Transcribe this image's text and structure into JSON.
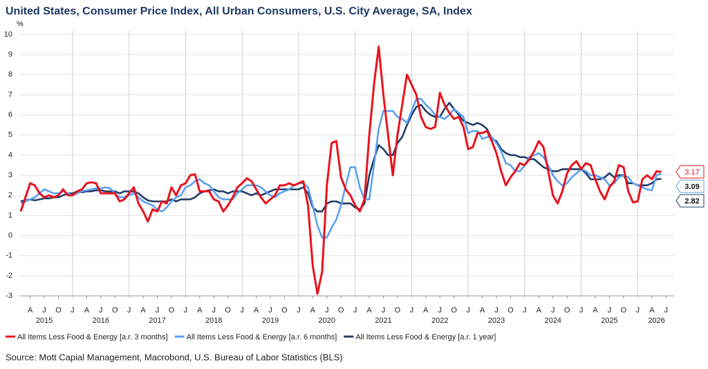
{
  "chart_data": {
    "type": "line",
    "title": "United States, Consumer Price Index, All Urban Consumers, U.S. City Average, SA, Index",
    "y_unit": "%",
    "source": "Source: Mott Capial Management, Macrobond, U.S. Bureau of Labor Statistics (BLS)",
    "ylim": [
      -3,
      10
    ],
    "yticks": [
      -3,
      -2,
      -1,
      0,
      1,
      2,
      3,
      4,
      5,
      6,
      7,
      8,
      9,
      10
    ],
    "grid": true,
    "xlim": [
      "2015-02",
      "2026-08"
    ],
    "x": [
      "2015-02",
      "2015-03",
      "2015-04",
      "2015-05",
      "2015-06",
      "2015-07",
      "2015-08",
      "2015-09",
      "2015-10",
      "2015-11",
      "2015-12",
      "2016-01",
      "2016-02",
      "2016-03",
      "2016-04",
      "2016-05",
      "2016-06",
      "2016-07",
      "2016-08",
      "2016-09",
      "2016-10",
      "2016-11",
      "2016-12",
      "2017-01",
      "2017-02",
      "2017-03",
      "2017-04",
      "2017-05",
      "2017-06",
      "2017-07",
      "2017-08",
      "2017-09",
      "2017-10",
      "2017-11",
      "2017-12",
      "2018-01",
      "2018-02",
      "2018-03",
      "2018-04",
      "2018-05",
      "2018-06",
      "2018-07",
      "2018-08",
      "2018-09",
      "2018-10",
      "2018-11",
      "2018-12",
      "2019-01",
      "2019-02",
      "2019-03",
      "2019-04",
      "2019-05",
      "2019-06",
      "2019-07",
      "2019-08",
      "2019-09",
      "2019-10",
      "2019-11",
      "2019-12",
      "2020-01",
      "2020-02",
      "2020-03",
      "2020-04",
      "2020-05",
      "2020-06",
      "2020-07",
      "2020-08",
      "2020-09",
      "2020-10",
      "2020-11",
      "2020-12",
      "2021-01",
      "2021-02",
      "2021-03",
      "2021-04",
      "2021-05",
      "2021-06",
      "2021-07",
      "2021-08",
      "2021-09",
      "2021-10",
      "2021-11",
      "2021-12",
      "2022-01",
      "2022-02",
      "2022-03",
      "2022-04",
      "2022-05",
      "2022-06",
      "2022-07",
      "2022-08",
      "2022-09",
      "2022-10",
      "2022-11",
      "2022-12",
      "2023-01",
      "2023-02",
      "2023-03",
      "2023-04",
      "2023-05",
      "2023-06",
      "2023-07",
      "2023-08",
      "2023-09",
      "2023-10",
      "2023-11",
      "2023-12",
      "2024-01",
      "2024-02",
      "2024-03",
      "2024-04",
      "2024-05",
      "2024-06",
      "2024-07",
      "2024-08",
      "2024-09",
      "2024-10",
      "2024-11",
      "2024-12",
      "2025-01",
      "2025-02",
      "2025-03",
      "2025-04",
      "2025-05",
      "2025-06",
      "2025-07",
      "2025-08",
      "2025-09",
      "2025-10",
      "2025-11",
      "2025-12",
      "2026-01",
      "2026-02",
      "2026-03",
      "2026-04",
      "2026-05",
      "2026-06"
    ],
    "xticks": [
      {
        "value": "2015-04",
        "label": "A"
      },
      {
        "value": "2015-07",
        "label": "J"
      },
      {
        "value": "2015-10",
        "label": "O"
      },
      {
        "value": "2016-01",
        "label": "J"
      },
      {
        "value": "2016-04",
        "label": "A"
      },
      {
        "value": "2016-07",
        "label": "J"
      },
      {
        "value": "2016-10",
        "label": "O"
      },
      {
        "value": "2017-01",
        "label": "J"
      },
      {
        "value": "2017-04",
        "label": "A"
      },
      {
        "value": "2017-07",
        "label": "J"
      },
      {
        "value": "2017-10",
        "label": "O"
      },
      {
        "value": "2018-01",
        "label": "J"
      },
      {
        "value": "2018-04",
        "label": "A"
      },
      {
        "value": "2018-07",
        "label": "J"
      },
      {
        "value": "2018-10",
        "label": "O"
      },
      {
        "value": "2019-01",
        "label": "J"
      },
      {
        "value": "2019-04",
        "label": "A"
      },
      {
        "value": "2019-07",
        "label": "J"
      },
      {
        "value": "2019-10",
        "label": "O"
      },
      {
        "value": "2020-01",
        "label": "J"
      },
      {
        "value": "2020-04",
        "label": "A"
      },
      {
        "value": "2020-07",
        "label": "J"
      },
      {
        "value": "2020-10",
        "label": "O"
      },
      {
        "value": "2021-01",
        "label": "J"
      },
      {
        "value": "2021-04",
        "label": "A"
      },
      {
        "value": "2021-07",
        "label": "J"
      },
      {
        "value": "2021-10",
        "label": "O"
      },
      {
        "value": "2022-01",
        "label": "J"
      },
      {
        "value": "2022-04",
        "label": "A"
      },
      {
        "value": "2022-07",
        "label": "J"
      },
      {
        "value": "2022-10",
        "label": "O"
      },
      {
        "value": "2023-01",
        "label": "J"
      },
      {
        "value": "2023-04",
        "label": "A"
      },
      {
        "value": "2023-07",
        "label": "J"
      },
      {
        "value": "2023-10",
        "label": "O"
      },
      {
        "value": "2024-01",
        "label": "J"
      },
      {
        "value": "2024-04",
        "label": "A"
      },
      {
        "value": "2024-07",
        "label": "J"
      },
      {
        "value": "2024-10",
        "label": "O"
      },
      {
        "value": "2025-01",
        "label": "J"
      },
      {
        "value": "2025-04",
        "label": "A"
      },
      {
        "value": "2025-07",
        "label": "J"
      },
      {
        "value": "2025-10",
        "label": "O"
      },
      {
        "value": "2026-01",
        "label": "J"
      },
      {
        "value": "2026-04",
        "label": "A"
      },
      {
        "value": "2026-07",
        "label": "J"
      }
    ],
    "year_labels": [
      {
        "value": "2015-07",
        "label": "2015"
      },
      {
        "value": "2016-07",
        "label": "2016"
      },
      {
        "value": "2017-07",
        "label": "2017"
      },
      {
        "value": "2018-07",
        "label": "2018"
      },
      {
        "value": "2019-07",
        "label": "2019"
      },
      {
        "value": "2020-07",
        "label": "2020"
      },
      {
        "value": "2021-07",
        "label": "2021"
      },
      {
        "value": "2022-07",
        "label": "2022"
      },
      {
        "value": "2023-07",
        "label": "2023"
      },
      {
        "value": "2024-07",
        "label": "2024"
      },
      {
        "value": "2025-07",
        "label": "2025"
      },
      {
        "value": "2026-05",
        "label": "2026"
      }
    ],
    "series": [
      {
        "name": "All Items Less Food & Energy [a.r. 3 months]",
        "color": "#e8121c",
        "values": [
          1.2,
          1.9,
          2.6,
          2.5,
          2.1,
          1.9,
          2.0,
          1.9,
          2.0,
          2.3,
          2.0,
          2.0,
          2.2,
          2.3,
          2.6,
          2.65,
          2.6,
          2.1,
          2.1,
          2.1,
          2.1,
          1.7,
          1.8,
          2.1,
          2.4,
          1.6,
          1.2,
          0.7,
          1.3,
          1.2,
          1.7,
          1.6,
          2.4,
          2.0,
          2.5,
          2.6,
          3.0,
          3.05,
          2.2,
          2.2,
          2.2,
          1.8,
          1.7,
          1.2,
          1.5,
          1.9,
          2.4,
          2.6,
          2.85,
          2.7,
          2.3,
          1.9,
          1.6,
          1.8,
          2.0,
          2.5,
          2.5,
          2.6,
          2.5,
          2.6,
          2.7,
          1.5,
          -1.5,
          -2.9,
          -1.8,
          2.5,
          4.6,
          4.7,
          2.9,
          2.3,
          2.0,
          1.5,
          1.2,
          1.8,
          5.0,
          7.5,
          9.4,
          7.0,
          5.0,
          3.0,
          5.0,
          6.5,
          8.0,
          7.5,
          7.0,
          5.9,
          5.4,
          5.3,
          5.4,
          7.1,
          6.5,
          6.1,
          5.8,
          5.9,
          5.4,
          4.3,
          4.4,
          5.1,
          5.1,
          5.2,
          4.7,
          4.1,
          3.2,
          2.5,
          2.9,
          3.2,
          3.6,
          3.5,
          3.8,
          4.2,
          4.7,
          4.4,
          3.2,
          2.0,
          1.6,
          2.2,
          3.1,
          3.5,
          3.7,
          3.3,
          3.6,
          3.5,
          2.8,
          2.2,
          1.8,
          2.4,
          2.7,
          3.5,
          3.4,
          2.2,
          1.65,
          1.7,
          2.8,
          3.0,
          2.8,
          3.2,
          3.17
        ]
      },
      {
        "name": "All Items Less Food & Energy [a.r. 6 months]",
        "color": "#5aa0f0",
        "values": [
          1.6,
          1.7,
          1.8,
          1.9,
          2.1,
          2.3,
          2.2,
          2.1,
          2.1,
          2.2,
          2.1,
          2.0,
          2.1,
          2.2,
          2.25,
          2.3,
          2.35,
          2.35,
          2.4,
          2.35,
          2.1,
          1.9,
          1.9,
          2.0,
          2.1,
          1.9,
          1.7,
          1.6,
          1.5,
          1.3,
          1.2,
          1.4,
          1.7,
          1.9,
          2.0,
          2.4,
          2.5,
          2.7,
          2.8,
          2.6,
          2.5,
          2.2,
          1.9,
          1.8,
          1.8,
          1.8,
          2.1,
          2.3,
          2.5,
          2.5,
          2.5,
          2.4,
          2.2,
          2.0,
          1.9,
          2.1,
          2.2,
          2.3,
          2.5,
          2.6,
          2.6,
          2.4,
          1.5,
          0.5,
          -0.1,
          -0.1,
          0.4,
          0.8,
          1.5,
          2.5,
          3.4,
          3.4,
          2.4,
          1.8,
          1.8,
          3.5,
          5.3,
          6.2,
          6.2,
          6.2,
          5.9,
          5.8,
          5.6,
          6.2,
          6.8,
          6.8,
          6.5,
          6.3,
          6.0,
          5.9,
          5.8,
          6.0,
          6.3,
          6.1,
          5.9,
          5.1,
          5.2,
          5.2,
          4.8,
          4.9,
          4.9,
          4.6,
          4.2,
          3.6,
          3.5,
          3.2,
          3.2,
          3.5,
          3.9,
          4.0,
          4.1,
          3.9,
          3.5,
          3.0,
          2.7,
          2.5,
          2.6,
          2.9,
          3.1,
          3.3,
          3.2,
          3.0,
          3.0,
          2.9,
          2.8,
          2.5,
          2.6,
          2.9,
          3.0,
          2.9,
          2.6,
          2.5,
          2.4,
          2.3,
          2.25,
          3.0,
          3.09
        ]
      },
      {
        "name": "All Items Less Food & Energy [a.r. 1 year]",
        "color": "#1f3d66",
        "values": [
          1.7,
          1.75,
          1.8,
          1.75,
          1.8,
          1.85,
          1.85,
          1.9,
          1.9,
          2.0,
          2.1,
          2.1,
          2.2,
          2.15,
          2.2,
          2.2,
          2.25,
          2.25,
          2.2,
          2.2,
          2.2,
          2.1,
          2.2,
          2.2,
          2.2,
          2.1,
          1.9,
          1.75,
          1.7,
          1.7,
          1.7,
          1.7,
          1.8,
          1.7,
          1.8,
          1.8,
          1.8,
          1.9,
          2.1,
          2.2,
          2.25,
          2.3,
          2.2,
          2.2,
          2.1,
          2.2,
          2.2,
          2.2,
          2.1,
          2.0,
          2.1,
          2.0,
          2.1,
          2.2,
          2.3,
          2.3,
          2.3,
          2.3,
          2.3,
          2.3,
          2.4,
          2.1,
          1.4,
          1.2,
          1.2,
          1.6,
          1.7,
          1.7,
          1.6,
          1.6,
          1.6,
          1.4,
          1.3,
          1.6,
          3.0,
          3.8,
          4.5,
          4.3,
          4.0,
          4.0,
          4.6,
          4.9,
          5.5,
          6.0,
          6.4,
          6.5,
          6.2,
          6.0,
          5.9,
          5.9,
          6.3,
          6.6,
          6.3,
          6.0,
          5.7,
          5.6,
          5.5,
          5.6,
          5.5,
          5.3,
          4.8,
          4.7,
          4.3,
          4.1,
          4.0,
          4.0,
          3.9,
          3.9,
          3.8,
          3.8,
          3.6,
          3.4,
          3.3,
          3.2,
          3.2,
          3.3,
          3.3,
          3.3,
          3.3,
          3.3,
          3.1,
          2.8,
          2.8,
          2.8,
          2.9,
          3.1,
          2.9,
          3.0,
          3.0,
          2.6,
          2.6,
          2.5,
          2.5,
          2.5,
          2.6,
          2.8,
          2.82
        ]
      }
    ]
  }
}
